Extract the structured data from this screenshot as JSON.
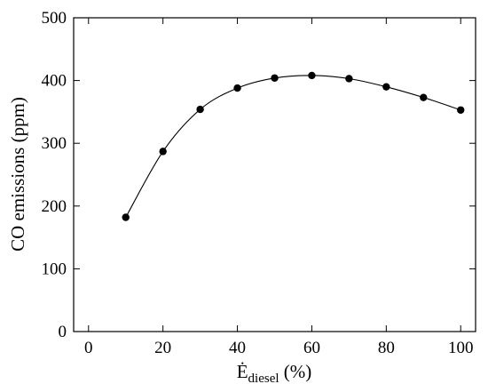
{
  "chart_data": {
    "type": "scatter",
    "title": "",
    "xlabel": "Ė",
    "xlabel_subscript": "diesel",
    "xlabel_unit": " (%)",
    "ylabel": "CO emissions (ppm)",
    "xlim": [
      -4,
      104
    ],
    "ylim": [
      0,
      500
    ],
    "xticks": [
      0,
      20,
      40,
      60,
      80,
      100
    ],
    "yticks": [
      0,
      100,
      200,
      300,
      400,
      500
    ],
    "grid": false,
    "series": [
      {
        "x": [
          10,
          20,
          30,
          40,
          50,
          60,
          70,
          80,
          90,
          100
        ],
        "values": [
          182,
          287,
          354,
          388,
          404,
          408,
          403,
          390,
          373,
          353
        ],
        "marker": "circle",
        "line": "smooth",
        "color": "#000000"
      }
    ]
  }
}
